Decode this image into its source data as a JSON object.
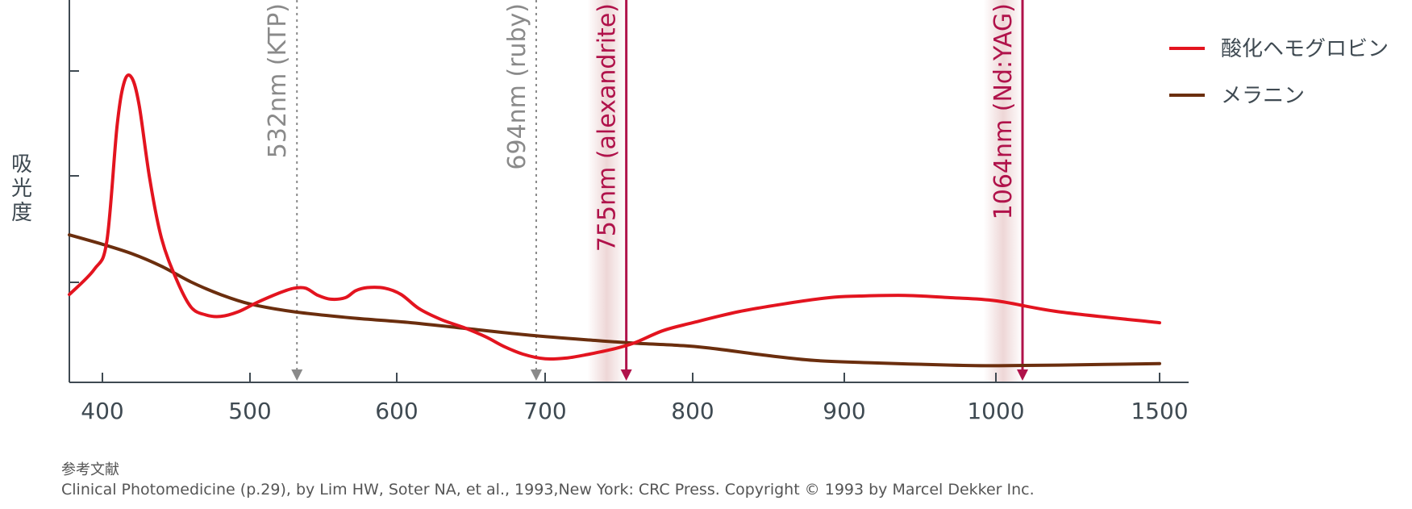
{
  "chart_data": {
    "type": "line",
    "ylabel": "吸光度",
    "x_ticks": [
      "400",
      "500",
      "600",
      "700",
      "800",
      "900",
      "1000",
      "1500"
    ],
    "series": [
      {
        "name": "酸化ヘモグロビン",
        "color": "#e3141f",
        "points": [
          [
            380,
            0.28
          ],
          [
            395,
            0.36
          ],
          [
            403,
            0.45
          ],
          [
            410,
            0.82
          ],
          [
            415,
            0.96
          ],
          [
            420,
            0.97
          ],
          [
            425,
            0.88
          ],
          [
            432,
            0.65
          ],
          [
            440,
            0.46
          ],
          [
            450,
            0.33
          ],
          [
            460,
            0.24
          ],
          [
            470,
            0.215
          ],
          [
            480,
            0.21
          ],
          [
            492,
            0.225
          ],
          [
            505,
            0.255
          ],
          [
            520,
            0.285
          ],
          [
            530,
            0.3
          ],
          [
            538,
            0.3
          ],
          [
            546,
            0.278
          ],
          [
            555,
            0.265
          ],
          [
            565,
            0.27
          ],
          [
            572,
            0.292
          ],
          [
            580,
            0.302
          ],
          [
            592,
            0.3
          ],
          [
            603,
            0.28
          ],
          [
            615,
            0.235
          ],
          [
            630,
            0.2
          ],
          [
            645,
            0.175
          ],
          [
            660,
            0.145
          ],
          [
            672,
            0.115
          ],
          [
            685,
            0.09
          ],
          [
            700,
            0.075
          ],
          [
            715,
            0.078
          ],
          [
            730,
            0.09
          ],
          [
            745,
            0.105
          ],
          [
            760,
            0.125
          ],
          [
            780,
            0.165
          ],
          [
            800,
            0.19
          ],
          [
            830,
            0.225
          ],
          [
            860,
            0.25
          ],
          [
            890,
            0.27
          ],
          [
            910,
            0.275
          ],
          [
            940,
            0.277
          ],
          [
            970,
            0.27
          ],
          [
            1000,
            0.26
          ],
          [
            1100,
            0.225
          ],
          [
            1200,
            0.19
          ]
        ]
      },
      {
        "name": "メラニン",
        "color": "#6b2e0e",
        "points": [
          [
            380,
            0.47
          ],
          [
            400,
            0.44
          ],
          [
            420,
            0.41
          ],
          [
            440,
            0.37
          ],
          [
            460,
            0.32
          ],
          [
            480,
            0.28
          ],
          [
            500,
            0.25
          ],
          [
            530,
            0.225
          ],
          [
            570,
            0.205
          ],
          [
            610,
            0.19
          ],
          [
            650,
            0.17
          ],
          [
            690,
            0.15
          ],
          [
            730,
            0.135
          ],
          [
            760,
            0.125
          ],
          [
            790,
            0.118
          ],
          [
            810,
            0.11
          ],
          [
            850,
            0.085
          ],
          [
            880,
            0.07
          ],
          [
            920,
            0.062
          ],
          [
            970,
            0.055
          ],
          [
            1000,
            0.053
          ],
          [
            1100,
            0.055
          ],
          [
            1200,
            0.06
          ]
        ]
      }
    ],
    "laser_lines": [
      {
        "label": "532nm (KTP)",
        "wavelength": 532,
        "style": "dotted",
        "color": "#8a8a8a"
      },
      {
        "label": "694nm (ruby)",
        "wavelength": 694,
        "style": "dotted",
        "color": "#8a8a8a"
      },
      {
        "label": "755nm (alexandrite)",
        "wavelength": 755,
        "style": "solid",
        "color": "#b0124a"
      },
      {
        "label": "1064nm (Nd:YAG)",
        "wavelength": 1064,
        "style": "solid",
        "color": "#b0124a"
      }
    ],
    "legend_position": "top-right",
    "grid": false
  },
  "reference": {
    "heading": "参考文献",
    "text": "Clinical Photomedicine (p.29), by Lim HW, Soter NA, et al., 1993,New York: CRC Press. Copyright © 1993 by Marcel Dekker Inc."
  }
}
